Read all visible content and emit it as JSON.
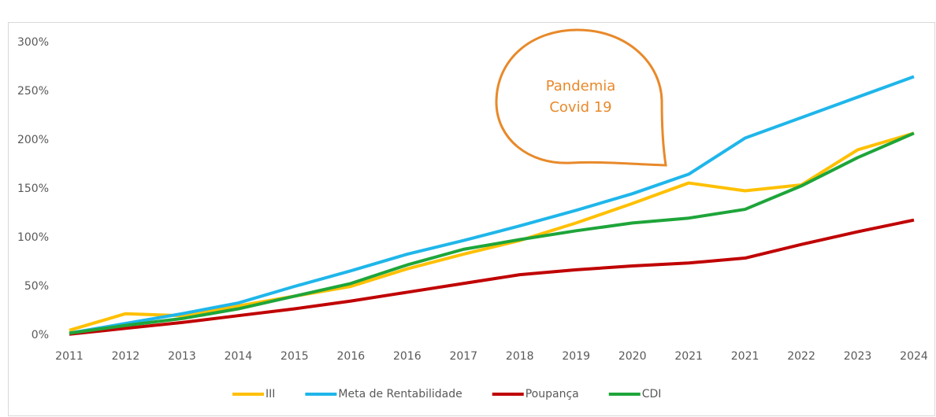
{
  "chart_data": {
    "type": "line",
    "annotation": [
      "Pandemia",
      "Covid 19"
    ],
    "categories": [
      "2011",
      "2012",
      "2013",
      "2014",
      "2015",
      "2016",
      "2016",
      "2017",
      "2018",
      "2019",
      "2020",
      "2021",
      "2021",
      "2022",
      "2023",
      "2024"
    ],
    "series": [
      {
        "name": "III",
        "color": "#FFC000",
        "values": [
          5,
          22,
          20,
          30,
          40,
          50,
          68,
          83,
          97,
          115,
          135,
          156,
          148,
          154,
          190,
          207
        ]
      },
      {
        "name": "Meta de Rentabilidade",
        "color": "#1FB6EA",
        "values": [
          2,
          12,
          22,
          33,
          50,
          66,
          83,
          97,
          112,
          128,
          145,
          165,
          202,
          223,
          244,
          265
        ]
      },
      {
        "name": "Poupança",
        "color": "#C00000",
        "values": [
          1,
          7,
          13,
          20,
          27,
          35,
          44,
          53,
          62,
          67,
          71,
          74,
          79,
          93,
          106,
          118
        ]
      },
      {
        "name": "CDI",
        "color": "#1EA53A",
        "values": [
          2,
          10,
          17,
          27,
          40,
          53,
          72,
          88,
          98,
          107,
          115,
          120,
          129,
          153,
          182,
          207
        ]
      }
    ],
    "ylim": [
      0,
      300
    ],
    "yticks": [
      {
        "value": 0,
        "label": "0%"
      },
      {
        "value": 50,
        "label": "50%"
      },
      {
        "value": 100,
        "label": "100%"
      },
      {
        "value": 150,
        "label": "150%"
      },
      {
        "value": 200,
        "label": "200%"
      },
      {
        "value": 250,
        "label": "250%"
      },
      {
        "value": 300,
        "label": "300%"
      }
    ],
    "grid": false,
    "legend": "bottom"
  }
}
